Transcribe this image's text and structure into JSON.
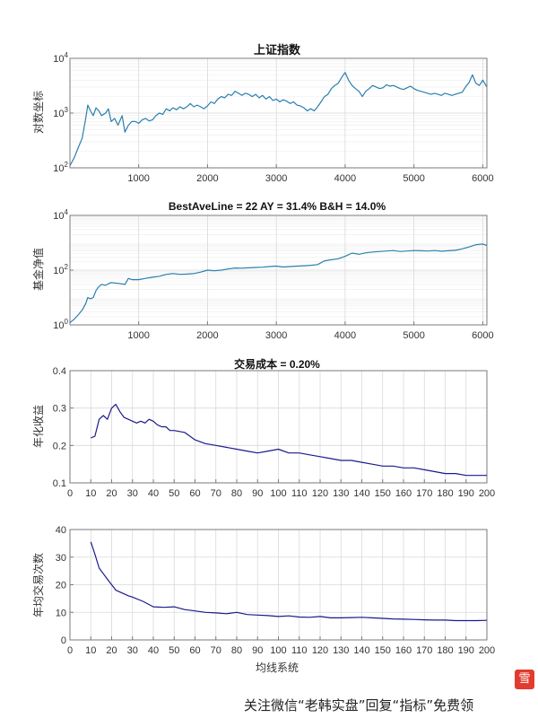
{
  "chart_data": [
    {
      "type": "line",
      "title": "上证指数",
      "ylabel": "对数坐标",
      "xlabel": "",
      "yscale": "log",
      "xlim": [
        1,
        6060
      ],
      "ylim": [
        100,
        10000
      ],
      "xticks": [
        1000,
        2000,
        3000,
        4000,
        5000,
        6000
      ],
      "yticks": [
        100,
        1000,
        10000
      ],
      "ytick_labels": [
        [
          "10",
          "2"
        ],
        [
          "10",
          "3"
        ],
        [
          "10",
          "4"
        ]
      ],
      "grid": true,
      "series_color": "#2a7fae",
      "series": [
        {
          "x": [
            1,
            60,
            120,
            180,
            230,
            260,
            300,
            340,
            380,
            420,
            460,
            520,
            560,
            600,
            650,
            700,
            760,
            800,
            850,
            900,
            950,
            1000,
            1050,
            1100,
            1150,
            1200,
            1250,
            1300,
            1350,
            1400,
            1450,
            1500,
            1550,
            1600,
            1650,
            1700,
            1750,
            1800,
            1850,
            1900,
            1950,
            2000,
            2050,
            2100,
            2150,
            2200,
            2250,
            2300,
            2350,
            2400,
            2450,
            2500,
            2550,
            2600,
            2650,
            2700,
            2750,
            2800,
            2850,
            2900,
            2950,
            3000,
            3050,
            3100,
            3150,
            3200,
            3250,
            3300,
            3350,
            3400,
            3450,
            3500,
            3550,
            3600,
            3650,
            3700,
            3750,
            3800,
            3850,
            3900,
            3950,
            4000,
            4050,
            4100,
            4150,
            4200,
            4250,
            4300,
            4350,
            4400,
            4450,
            4500,
            4550,
            4600,
            4650,
            4700,
            4750,
            4800,
            4850,
            4900,
            4950,
            5000,
            5050,
            5100,
            5150,
            5200,
            5250,
            5300,
            5350,
            5400,
            5450,
            5500,
            5550,
            5600,
            5650,
            5700,
            5750,
            5800,
            5850,
            5900,
            5950,
            6000,
            6060
          ],
          "y": [
            110,
            150,
            230,
            350,
            800,
            1400,
            1100,
            900,
            1250,
            1100,
            900,
            1000,
            1200,
            700,
            800,
            600,
            900,
            450,
            600,
            700,
            700,
            650,
            750,
            800,
            720,
            750,
            900,
            1000,
            950,
            1200,
            1100,
            1250,
            1150,
            1300,
            1200,
            1300,
            1500,
            1300,
            1400,
            1300,
            1200,
            1350,
            1600,
            1500,
            1800,
            2000,
            1900,
            2200,
            2100,
            2500,
            2300,
            2100,
            2300,
            2200,
            2000,
            2200,
            1900,
            2100,
            1800,
            2000,
            1700,
            1800,
            1600,
            1750,
            1650,
            1500,
            1600,
            1400,
            1350,
            1250,
            1100,
            1200,
            1100,
            1300,
            1600,
            2000,
            2200,
            2800,
            3200,
            3500,
            4500,
            5500,
            4000,
            3200,
            2800,
            2500,
            2000,
            2500,
            2800,
            3200,
            3000,
            2800,
            2900,
            3300,
            3100,
            3200,
            3000,
            2800,
            2700,
            2900,
            3100,
            2800,
            2600,
            2500,
            2400,
            2300,
            2200,
            2300,
            2200,
            2100,
            2300,
            2200,
            2100,
            2200,
            2300,
            2400,
            3000,
            3600,
            5000,
            3500,
            3200,
            4000,
            3000
          ]
        }
      ]
    },
    {
      "type": "line",
      "title": "BestAveLine = 22   AY = 31.4%   B&H = 14.0%",
      "ylabel": "基金净值",
      "xlabel": "",
      "yscale": "log",
      "xlim": [
        1,
        6060
      ],
      "ylim": [
        1,
        10000
      ],
      "xticks": [
        1000,
        2000,
        3000,
        4000,
        5000,
        6000
      ],
      "yticks": [
        1,
        100,
        10000
      ],
      "ytick_labels": [
        [
          "10",
          "0"
        ],
        [
          "10",
          "2"
        ],
        [
          "10",
          "4"
        ]
      ],
      "grid": true,
      "series_color": "#2a7fae",
      "series": [
        {
          "x": [
            1,
            60,
            120,
            180,
            230,
            260,
            300,
            340,
            380,
            420,
            460,
            520,
            560,
            600,
            700,
            800,
            850,
            900,
            1000,
            1100,
            1200,
            1300,
            1400,
            1500,
            1600,
            1700,
            1800,
            1900,
            2000,
            2100,
            2200,
            2300,
            2400,
            2500,
            2600,
            2700,
            2800,
            2900,
            3000,
            3100,
            3200,
            3300,
            3400,
            3500,
            3600,
            3700,
            3800,
            3900,
            4000,
            4100,
            4200,
            4300,
            4400,
            4500,
            4600,
            4700,
            4800,
            4900,
            5000,
            5100,
            5200,
            5300,
            5400,
            5500,
            5600,
            5700,
            5800,
            5900,
            6000,
            6060
          ],
          "y": [
            1.2,
            1.6,
            2.3,
            3.5,
            6,
            10,
            9,
            10,
            18,
            25,
            30,
            28,
            32,
            35,
            33,
            30,
            50,
            45,
            45,
            50,
            55,
            60,
            70,
            75,
            70,
            72,
            75,
            85,
            100,
            95,
            100,
            110,
            120,
            118,
            122,
            125,
            128,
            135,
            140,
            130,
            135,
            140,
            145,
            150,
            160,
            220,
            240,
            260,
            320,
            420,
            380,
            430,
            460,
            480,
            500,
            520,
            480,
            500,
            520,
            510,
            500,
            520,
            490,
            510,
            530,
            600,
            700,
            850,
            900,
            800
          ]
        }
      ]
    },
    {
      "type": "line",
      "title": "交易成本 = 0.20%",
      "ylabel": "年化收益",
      "xlabel": "",
      "xlim": [
        0,
        200
      ],
      "ylim": [
        0.1,
        0.4
      ],
      "xticks": [
        0,
        10,
        20,
        30,
        40,
        50,
        60,
        70,
        80,
        90,
        100,
        110,
        120,
        130,
        140,
        150,
        160,
        170,
        180,
        190,
        200
      ],
      "yticks": [
        0.1,
        0.2,
        0.3,
        0.4
      ],
      "ytick_labels": [
        "0.1",
        "0.2",
        "0.3",
        "0.4"
      ],
      "grid": true,
      "series_color": "#1a1a8c",
      "series": [
        {
          "x": [
            10,
            12,
            14,
            16,
            18,
            20,
            22,
            24,
            26,
            28,
            30,
            32,
            34,
            36,
            38,
            40,
            42,
            44,
            46,
            48,
            50,
            55,
            60,
            65,
            70,
            75,
            80,
            85,
            90,
            95,
            100,
            105,
            110,
            115,
            120,
            125,
            130,
            135,
            140,
            145,
            150,
            155,
            160,
            165,
            170,
            175,
            180,
            185,
            190,
            195,
            200
          ],
          "y": [
            0.22,
            0.225,
            0.27,
            0.28,
            0.27,
            0.3,
            0.31,
            0.29,
            0.275,
            0.27,
            0.265,
            0.26,
            0.265,
            0.26,
            0.27,
            0.265,
            0.255,
            0.25,
            0.25,
            0.24,
            0.24,
            0.235,
            0.215,
            0.205,
            0.2,
            0.195,
            0.19,
            0.185,
            0.18,
            0.185,
            0.19,
            0.18,
            0.18,
            0.175,
            0.17,
            0.165,
            0.16,
            0.16,
            0.155,
            0.15,
            0.145,
            0.145,
            0.14,
            0.14,
            0.135,
            0.13,
            0.125,
            0.125,
            0.12,
            0.12,
            0.12
          ]
        }
      ]
    },
    {
      "type": "line",
      "title": "",
      "ylabel": "年均交易次数",
      "xlabel": "均线系统",
      "xlim": [
        0,
        200
      ],
      "ylim": [
        0,
        40
      ],
      "xticks": [
        0,
        10,
        20,
        30,
        40,
        50,
        60,
        70,
        80,
        90,
        100,
        110,
        120,
        130,
        140,
        150,
        160,
        170,
        180,
        190,
        200
      ],
      "yticks": [
        0,
        10,
        20,
        30,
        40
      ],
      "ytick_labels": [
        "0",
        "10",
        "20",
        "30",
        "40"
      ],
      "grid": true,
      "series_color": "#1a1a8c",
      "series": [
        {
          "x": [
            10,
            12,
            14,
            16,
            18,
            20,
            22,
            25,
            28,
            30,
            35,
            40,
            45,
            50,
            55,
            60,
            65,
            70,
            75,
            80,
            85,
            90,
            95,
            100,
            105,
            110,
            115,
            120,
            125,
            130,
            135,
            140,
            145,
            150,
            155,
            160,
            165,
            170,
            175,
            180,
            185,
            190,
            195,
            200
          ],
          "y": [
            35.5,
            31,
            26,
            24,
            22,
            20,
            18,
            17,
            16,
            15.5,
            14,
            12,
            11.8,
            12,
            11,
            10.5,
            10,
            9.8,
            9.5,
            10,
            9.2,
            9,
            8.8,
            8.5,
            8.7,
            8.3,
            8.2,
            8.5,
            8,
            8,
            8.1,
            8.2,
            8,
            7.8,
            7.6,
            7.5,
            7.4,
            7.3,
            7.2,
            7.2,
            7,
            7,
            7,
            7.1
          ]
        }
      ]
    }
  ],
  "watermark": {
    "text": "关注微信“老韩实盘”回复“指标”免费领",
    "logo_char": "雪"
  }
}
